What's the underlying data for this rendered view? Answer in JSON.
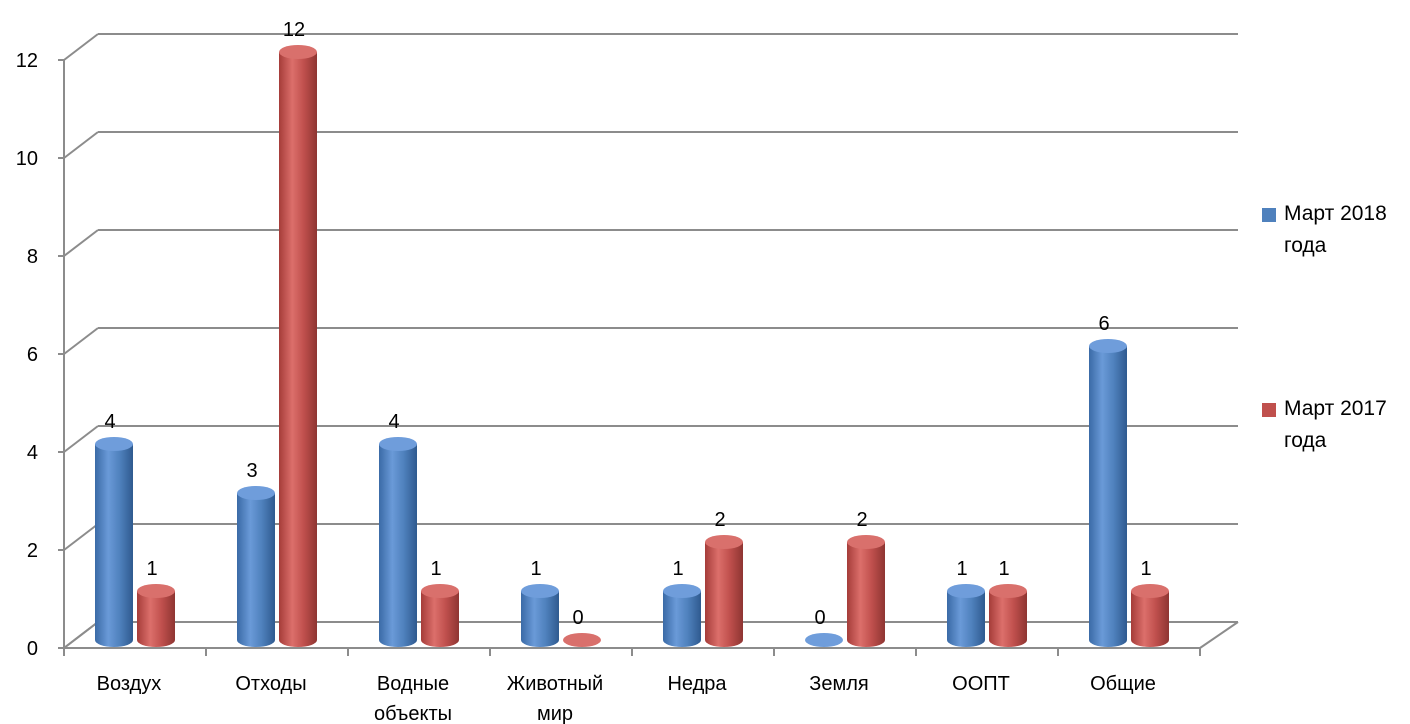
{
  "chart_data": {
    "type": "bar",
    "categories": [
      [
        "Воздух"
      ],
      [
        "Отходы"
      ],
      [
        "Водные",
        "объекты"
      ],
      [
        "Животный",
        "мир"
      ],
      [
        "Недра"
      ],
      [
        "Земля"
      ],
      [
        "ООПТ"
      ],
      [
        "Общие"
      ]
    ],
    "series": [
      {
        "name": "Март 2018 года",
        "name_lines": [
          "Март 2018",
          "года"
        ],
        "color": "#4F81BD",
        "values": [
          4,
          3,
          4,
          1,
          1,
          0,
          1,
          6
        ]
      },
      {
        "name": "Март 2017 года",
        "name_lines": [
          "Март 2017",
          "года"
        ],
        "color": "#C0504D",
        "values": [
          1,
          12,
          1,
          0,
          2,
          2,
          1,
          1
        ]
      }
    ],
    "ylim": [
      0,
      12
    ],
    "yticks": [
      0,
      2,
      4,
      6,
      8,
      10,
      12
    ],
    "grid": true,
    "legend_position": "right",
    "style": "3d-cylinder",
    "title": "",
    "xlabel": "",
    "ylabel": ""
  }
}
